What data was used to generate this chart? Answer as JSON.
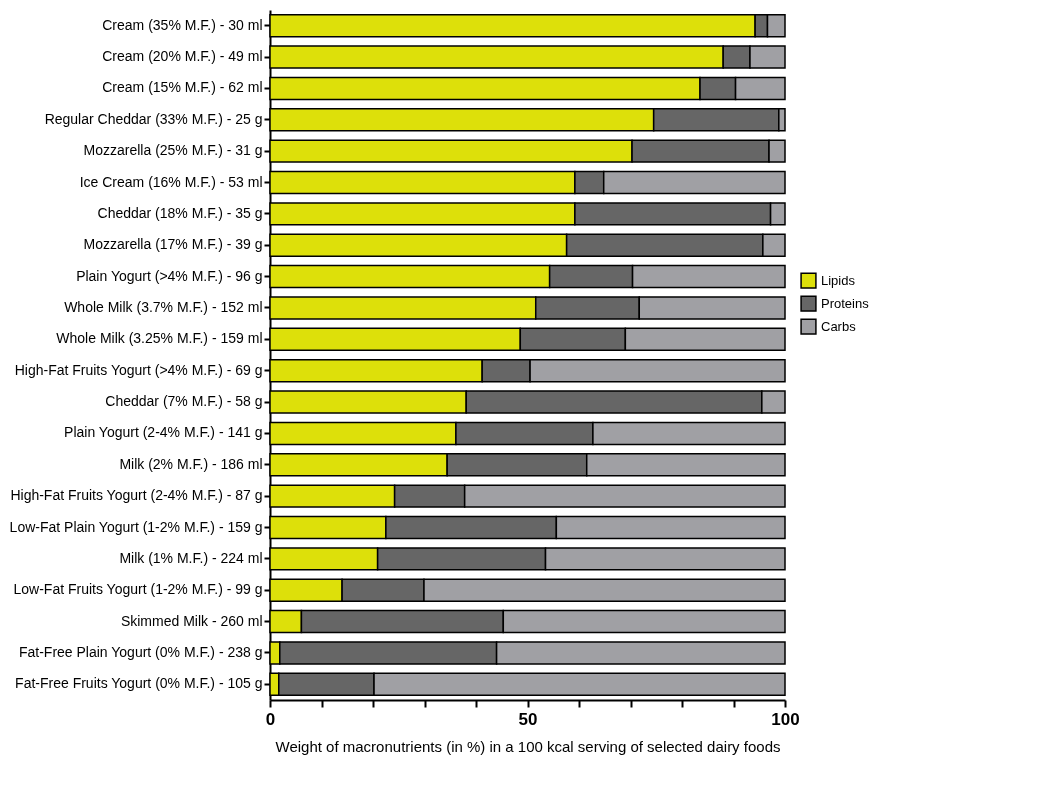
{
  "chart_data": {
    "type": "bar",
    "orientation": "horizontal",
    "stacked": true,
    "xlabel": "Weight of macronutrients (in %) in a 100 kcal serving of selected dairy foods",
    "legend": "right",
    "grid": false,
    "categories": [
      "Cream (35% M.F.) - 30 ml",
      "Cream (20% M.F.) - 49 ml",
      "Cream (15% M.F.) - 62 ml",
      "Regular Cheddar (33% M.F.) - 25 g",
      "Mozzarella (25% M.F.) - 31 g",
      "Ice Cream (16% M.F.) - 53 ml",
      "Cheddar (18% M.F.) - 35 g",
      "Mozzarella (17% M.F.) - 39 g",
      "Plain Yogurt (>4% M.F.) - 96 g",
      "Whole Milk (3.7% M.F.) - 152 ml",
      "Whole Milk (3.25% M.F.) - 159 ml",
      "High-Fat Fruits Yogurt (>4% M.F.) - 69 g",
      "Cheddar (7% M.F.) - 58 g",
      "Plain Yogurt (2-4% M.F.) - 141 g",
      "Milk (2% M.F.) - 186 ml",
      "High-Fat Fruits Yogurt (2-4% M.F.) - 87 g",
      "Low-Fat Plain Yogurt (1-2% M.F.) - 159 g",
      "Milk (1% M.F.) - 224 ml",
      "Low-Fat Fruits Yogurt (1-2% M.F.) - 99 g",
      "Skimmed Milk - 260 ml",
      "Fat-Free Plain Yogurt (0% M.F.) - 238 g",
      "Fat-Free Fruits Yogurt (0% M.F.) - 105 g"
    ],
    "series": [
      {
        "name": "Lipids",
        "color": "#dde00a",
        "values": [
          94.2,
          88,
          83.5,
          74.5,
          70.3,
          59.2,
          59.2,
          57.6,
          54.3,
          51.6,
          48.6,
          41.2,
          38.1,
          36.1,
          34.4,
          24.2,
          22.5,
          20.9,
          14,
          6.1,
          1.9,
          1.7
        ]
      },
      {
        "name": "Proteins",
        "color": "#666666",
        "values": [
          2.4,
          5.2,
          6.9,
          24.3,
          26.6,
          5.6,
          38,
          38.1,
          16.1,
          20.1,
          20.4,
          9.3,
          57.4,
          26.6,
          27.1,
          13.6,
          33.1,
          32.6,
          15.9,
          39.2,
          42.1,
          18.5
        ]
      },
      {
        "name": "Carbs",
        "color": "#a0a0a4",
        "values": [
          3.4,
          6.8,
          9.6,
          1.2,
          3.1,
          35.2,
          2.8,
          4.3,
          29.6,
          28.3,
          31,
          49.5,
          4.5,
          37.3,
          38.5,
          62.2,
          44.4,
          46.5,
          70.1,
          54.7,
          56,
          79.8
        ]
      }
    ],
    "xlim": [
      0,
      100
    ],
    "xticks": [
      0,
      {
        "value": 10,
        "label": null
      },
      {
        "value": 20,
        "label": null
      },
      {
        "value": 30,
        "label": null
      },
      {
        "value": 40,
        "label": null
      },
      50,
      {
        "value": 60,
        "label": null
      },
      {
        "value": 70,
        "label": null
      },
      {
        "value": 80,
        "label": null
      },
      {
        "value": 90,
        "label": null
      },
      100
    ]
  }
}
